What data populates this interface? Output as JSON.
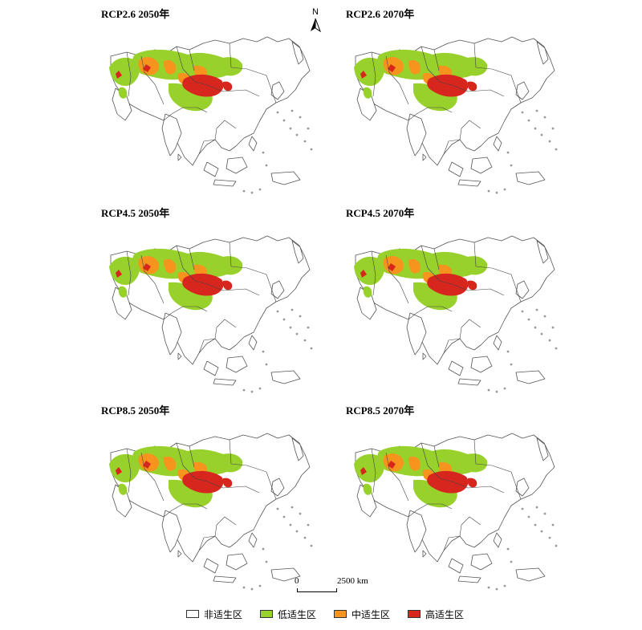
{
  "panels": [
    {
      "title": "RCP2.6 2050年"
    },
    {
      "title": "RCP2.6 2070年"
    },
    {
      "title": "RCP4.5 2050年"
    },
    {
      "title": "RCP4.5 2070年"
    },
    {
      "title": "RCP8.5 2050年"
    },
    {
      "title": "RCP8.5 2070年"
    }
  ],
  "north_arrow": {
    "label": "N"
  },
  "scale_bar": {
    "zero": "0",
    "max": "2500 km"
  },
  "legend": [
    {
      "label": "非适生区",
      "color": "#ffffff"
    },
    {
      "label": "低适生区",
      "color": "#99d12c"
    },
    {
      "label": "中适生区",
      "color": "#f7941d"
    },
    {
      "label": "高适生区",
      "color": "#d7261e"
    }
  ]
}
